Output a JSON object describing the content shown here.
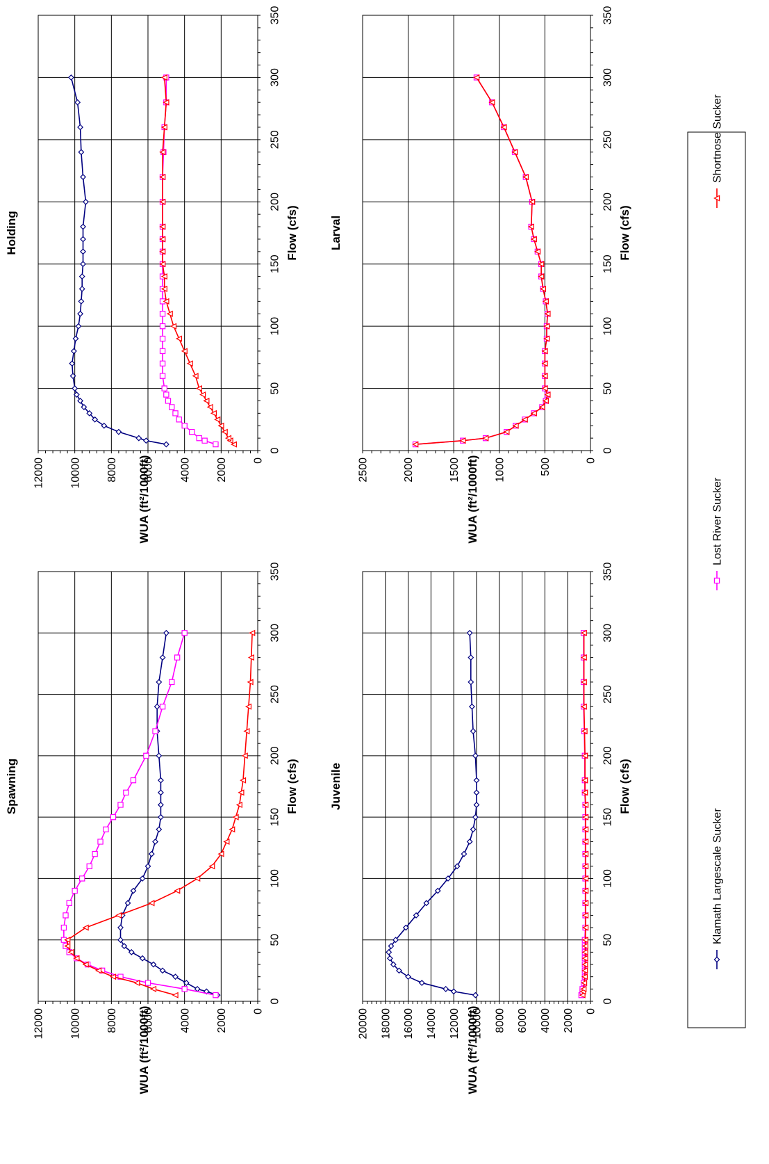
{
  "legend": {
    "entries": [
      {
        "name": "Klamath Largescale Sucker",
        "color": "#000080",
        "marker": "diamond"
      },
      {
        "name": "Lost River Sucker",
        "color": "#FF00FF",
        "marker": "square"
      },
      {
        "name": "Shortnose Sucker",
        "color": "#FF0000",
        "marker": "triangle"
      }
    ]
  },
  "chart_data": [
    {
      "id": "spawning",
      "type": "line",
      "title": "Spawning",
      "xlabel": "Flow (cfs)",
      "ylabel": "WUA (ft²/1000ft)",
      "xlim": [
        0,
        350
      ],
      "ylim": [
        0,
        12000
      ],
      "x_ticks": [
        0,
        50,
        100,
        150,
        200,
        250,
        300,
        350
      ],
      "y_ticks": [
        0,
        2000,
        4000,
        6000,
        8000,
        10000,
        12000
      ],
      "grid": true,
      "series": [
        {
          "name": "Klamath Largescale Sucker",
          "color": "#000080",
          "marker": "diamond",
          "x": [
            5,
            8,
            10,
            15,
            20,
            25,
            30,
            35,
            40,
            45,
            50,
            60,
            70,
            80,
            90,
            100,
            110,
            120,
            130,
            140,
            150,
            160,
            170,
            180,
            200,
            220,
            240,
            260,
            280,
            300
          ],
          "y": [
            2200,
            2800,
            3300,
            3900,
            4500,
            5200,
            5700,
            6300,
            6900,
            7300,
            7500,
            7500,
            7400,
            7100,
            6800,
            6300,
            6000,
            5800,
            5600,
            5400,
            5300,
            5300,
            5300,
            5300,
            5400,
            5500,
            5500,
            5400,
            5200,
            5000
          ]
        },
        {
          "name": "Lost River Sucker",
          "color": "#FF00FF",
          "marker": "square",
          "x": [
            5,
            10,
            15,
            20,
            25,
            30,
            35,
            40,
            45,
            50,
            60,
            70,
            80,
            90,
            100,
            110,
            120,
            130,
            140,
            150,
            160,
            170,
            180,
            200,
            220,
            240,
            260,
            280,
            300
          ],
          "y": [
            2300,
            4000,
            6000,
            7500,
            8500,
            9300,
            9900,
            10300,
            10500,
            10600,
            10600,
            10500,
            10300,
            10000,
            9600,
            9200,
            8900,
            8600,
            8300,
            7900,
            7500,
            7200,
            6800,
            6100,
            5600,
            5200,
            4700,
            4400,
            4000
          ]
        },
        {
          "name": "Shortnose Sucker",
          "color": "#FF0000",
          "marker": "triangle",
          "x": [
            5,
            10,
            15,
            20,
            25,
            30,
            35,
            40,
            45,
            50,
            60,
            70,
            80,
            90,
            100,
            110,
            120,
            130,
            140,
            150,
            160,
            170,
            180,
            200,
            220,
            240,
            260,
            280,
            300
          ],
          "y": [
            4500,
            5700,
            6600,
            7900,
            8700,
            9400,
            9900,
            10200,
            10400,
            10400,
            9400,
            7600,
            5800,
            4400,
            3300,
            2500,
            2000,
            1700,
            1400,
            1200,
            1000,
            900,
            800,
            700,
            600,
            500,
            400,
            350,
            300
          ]
        }
      ]
    },
    {
      "id": "holding",
      "type": "line",
      "title": "Holding",
      "xlabel": "Flow (cfs)",
      "ylabel": "WUA (ft²/1000ft)",
      "xlim": [
        0,
        350
      ],
      "ylim": [
        0,
        12000
      ],
      "x_ticks": [
        0,
        50,
        100,
        150,
        200,
        250,
        300,
        350
      ],
      "y_ticks": [
        0,
        2000,
        4000,
        6000,
        8000,
        10000,
        12000
      ],
      "grid": true,
      "series": [
        {
          "name": "Klamath Largescale Sucker",
          "color": "#000080",
          "marker": "diamond",
          "x": [
            5,
            8,
            10,
            15,
            20,
            25,
            30,
            35,
            40,
            45,
            50,
            60,
            70,
            80,
            90,
            100,
            110,
            120,
            130,
            140,
            150,
            160,
            170,
            180,
            200,
            220,
            240,
            260,
            280,
            300
          ],
          "y": [
            5000,
            6100,
            6500,
            7600,
            8400,
            8900,
            9200,
            9500,
            9700,
            9900,
            10000,
            10100,
            10150,
            10050,
            9950,
            9800,
            9700,
            9650,
            9600,
            9600,
            9550,
            9550,
            9550,
            9550,
            9400,
            9550,
            9650,
            9700,
            9850,
            10200
          ]
        },
        {
          "name": "Lost River Sucker",
          "color": "#FF00FF",
          "marker": "square",
          "x": [
            5,
            8,
            10,
            15,
            20,
            25,
            30,
            35,
            40,
            45,
            50,
            60,
            70,
            80,
            90,
            100,
            110,
            120,
            130,
            140,
            150,
            160,
            170,
            180,
            200,
            220,
            240,
            260,
            280,
            300
          ],
          "y": [
            2300,
            2900,
            3200,
            3600,
            4000,
            4300,
            4500,
            4700,
            4900,
            5000,
            5100,
            5200,
            5200,
            5200,
            5200,
            5200,
            5200,
            5200,
            5200,
            5200,
            5200,
            5200,
            5200,
            5200,
            5200,
            5200,
            5150,
            5100,
            5000,
            5000
          ]
        },
        {
          "name": "Shortnose Sucker",
          "color": "#FF0000",
          "marker": "triangle",
          "x": [
            5,
            8,
            10,
            15,
            20,
            25,
            30,
            35,
            40,
            45,
            50,
            60,
            70,
            80,
            90,
            100,
            110,
            120,
            130,
            140,
            150,
            160,
            170,
            180,
            200,
            220,
            240,
            260,
            280,
            300
          ],
          "y": [
            1300,
            1500,
            1600,
            1800,
            2000,
            2200,
            2400,
            2600,
            2800,
            3000,
            3200,
            3400,
            3700,
            4000,
            4300,
            4600,
            4800,
            5000,
            5100,
            5100,
            5200,
            5200,
            5200,
            5200,
            5200,
            5200,
            5200,
            5100,
            5000,
            5100
          ]
        }
      ]
    },
    {
      "id": "juvenile",
      "type": "line",
      "title": "Juvenile",
      "xlabel": "Flow (cfs)",
      "ylabel": "WUA (ft²/1000ft)",
      "xlim": [
        0,
        350
      ],
      "ylim": [
        0,
        20000
      ],
      "x_ticks": [
        0,
        50,
        100,
        150,
        200,
        250,
        300,
        350
      ],
      "y_ticks": [
        0,
        2000,
        4000,
        6000,
        8000,
        10000,
        12000,
        14000,
        16000,
        18000,
        20000
      ],
      "y_tick_labels": [
        "0",
        "2000",
        "4000",
        "6000",
        "8000",
        "10000",
        "12000",
        "14000",
        "16000",
        "18000",
        "20000"
      ],
      "grid": true,
      "series": [
        {
          "name": "Klamath Largescale Sucker",
          "color": "#000080",
          "marker": "diamond",
          "x": [
            5,
            8,
            10,
            15,
            20,
            25,
            30,
            35,
            40,
            45,
            50,
            60,
            70,
            80,
            90,
            100,
            110,
            120,
            130,
            140,
            150,
            160,
            170,
            180,
            200,
            220,
            240,
            260,
            280,
            300
          ],
          "y": [
            10100,
            12000,
            12700,
            14800,
            16000,
            16800,
            17300,
            17600,
            17700,
            17500,
            17100,
            16200,
            15300,
            14400,
            13400,
            12500,
            11700,
            11100,
            10600,
            10300,
            10100,
            10000,
            10000,
            10000,
            10100,
            10300,
            10400,
            10500,
            10500,
            10600
          ]
        },
        {
          "name": "Lost River Sucker",
          "color": "#FF00FF",
          "marker": "square",
          "x": [
            5,
            8,
            10,
            15,
            20,
            25,
            30,
            35,
            40,
            45,
            50,
            60,
            70,
            80,
            90,
            100,
            110,
            120,
            130,
            140,
            150,
            160,
            170,
            180,
            200,
            220,
            240,
            260,
            280,
            300
          ],
          "y": [
            800,
            700,
            700,
            600,
            500,
            500,
            500,
            500,
            500,
            500,
            500,
            450,
            450,
            450,
            450,
            450,
            450,
            450,
            450,
            450,
            450,
            450,
            500,
            500,
            500,
            550,
            600,
            600,
            600,
            600
          ]
        },
        {
          "name": "Shortnose Sucker",
          "color": "#FF0000",
          "marker": "triangle",
          "x": [
            5,
            8,
            10,
            15,
            20,
            25,
            30,
            35,
            40,
            45,
            50,
            60,
            70,
            80,
            90,
            100,
            110,
            120,
            130,
            140,
            150,
            160,
            170,
            180,
            200,
            220,
            240,
            260,
            280,
            300
          ],
          "y": [
            700,
            650,
            600,
            550,
            500,
            480,
            470,
            460,
            460,
            450,
            450,
            430,
            430,
            430,
            430,
            430,
            430,
            430,
            430,
            430,
            430,
            430,
            480,
            480,
            480,
            520,
            570,
            570,
            570,
            570
          ]
        }
      ]
    },
    {
      "id": "larval",
      "type": "line",
      "title": "Larval",
      "xlabel": "Flow (cfs)",
      "ylabel": "WUA (ft²/1000ft)",
      "xlim": [
        0,
        350
      ],
      "ylim": [
        0,
        2500
      ],
      "x_ticks": [
        0,
        50,
        100,
        150,
        200,
        250,
        300,
        350
      ],
      "y_ticks": [
        0,
        500,
        1000,
        1500,
        2000,
        2500
      ],
      "grid": true,
      "series": [
        {
          "name": "Lost River Sucker",
          "color": "#FF00FF",
          "marker": "square",
          "x": [
            5,
            8,
            10,
            15,
            20,
            25,
            30,
            35,
            40,
            45,
            50,
            60,
            70,
            80,
            90,
            100,
            110,
            120,
            130,
            140,
            150,
            160,
            170,
            180,
            200,
            220,
            240,
            260,
            280,
            300
          ],
          "y": [
            1920,
            1400,
            1150,
            920,
            820,
            720,
            620,
            530,
            490,
            470,
            500,
            500,
            500,
            500,
            480,
            480,
            470,
            490,
            520,
            540,
            540,
            580,
            620,
            650,
            640,
            710,
            830,
            950,
            1080,
            1250
          ]
        },
        {
          "name": "Shortnose Sucker",
          "color": "#FF0000",
          "marker": "triangle",
          "x": [
            5,
            8,
            10,
            15,
            20,
            25,
            30,
            35,
            40,
            45,
            50,
            60,
            70,
            80,
            90,
            100,
            110,
            120,
            130,
            140,
            150,
            160,
            170,
            180,
            200,
            220,
            240,
            260,
            280,
            300
          ],
          "y": [
            1920,
            1400,
            1150,
            920,
            820,
            720,
            620,
            530,
            490,
            470,
            500,
            500,
            500,
            500,
            480,
            480,
            470,
            490,
            520,
            540,
            540,
            580,
            620,
            650,
            640,
            710,
            830,
            950,
            1080,
            1250
          ]
        }
      ]
    }
  ]
}
